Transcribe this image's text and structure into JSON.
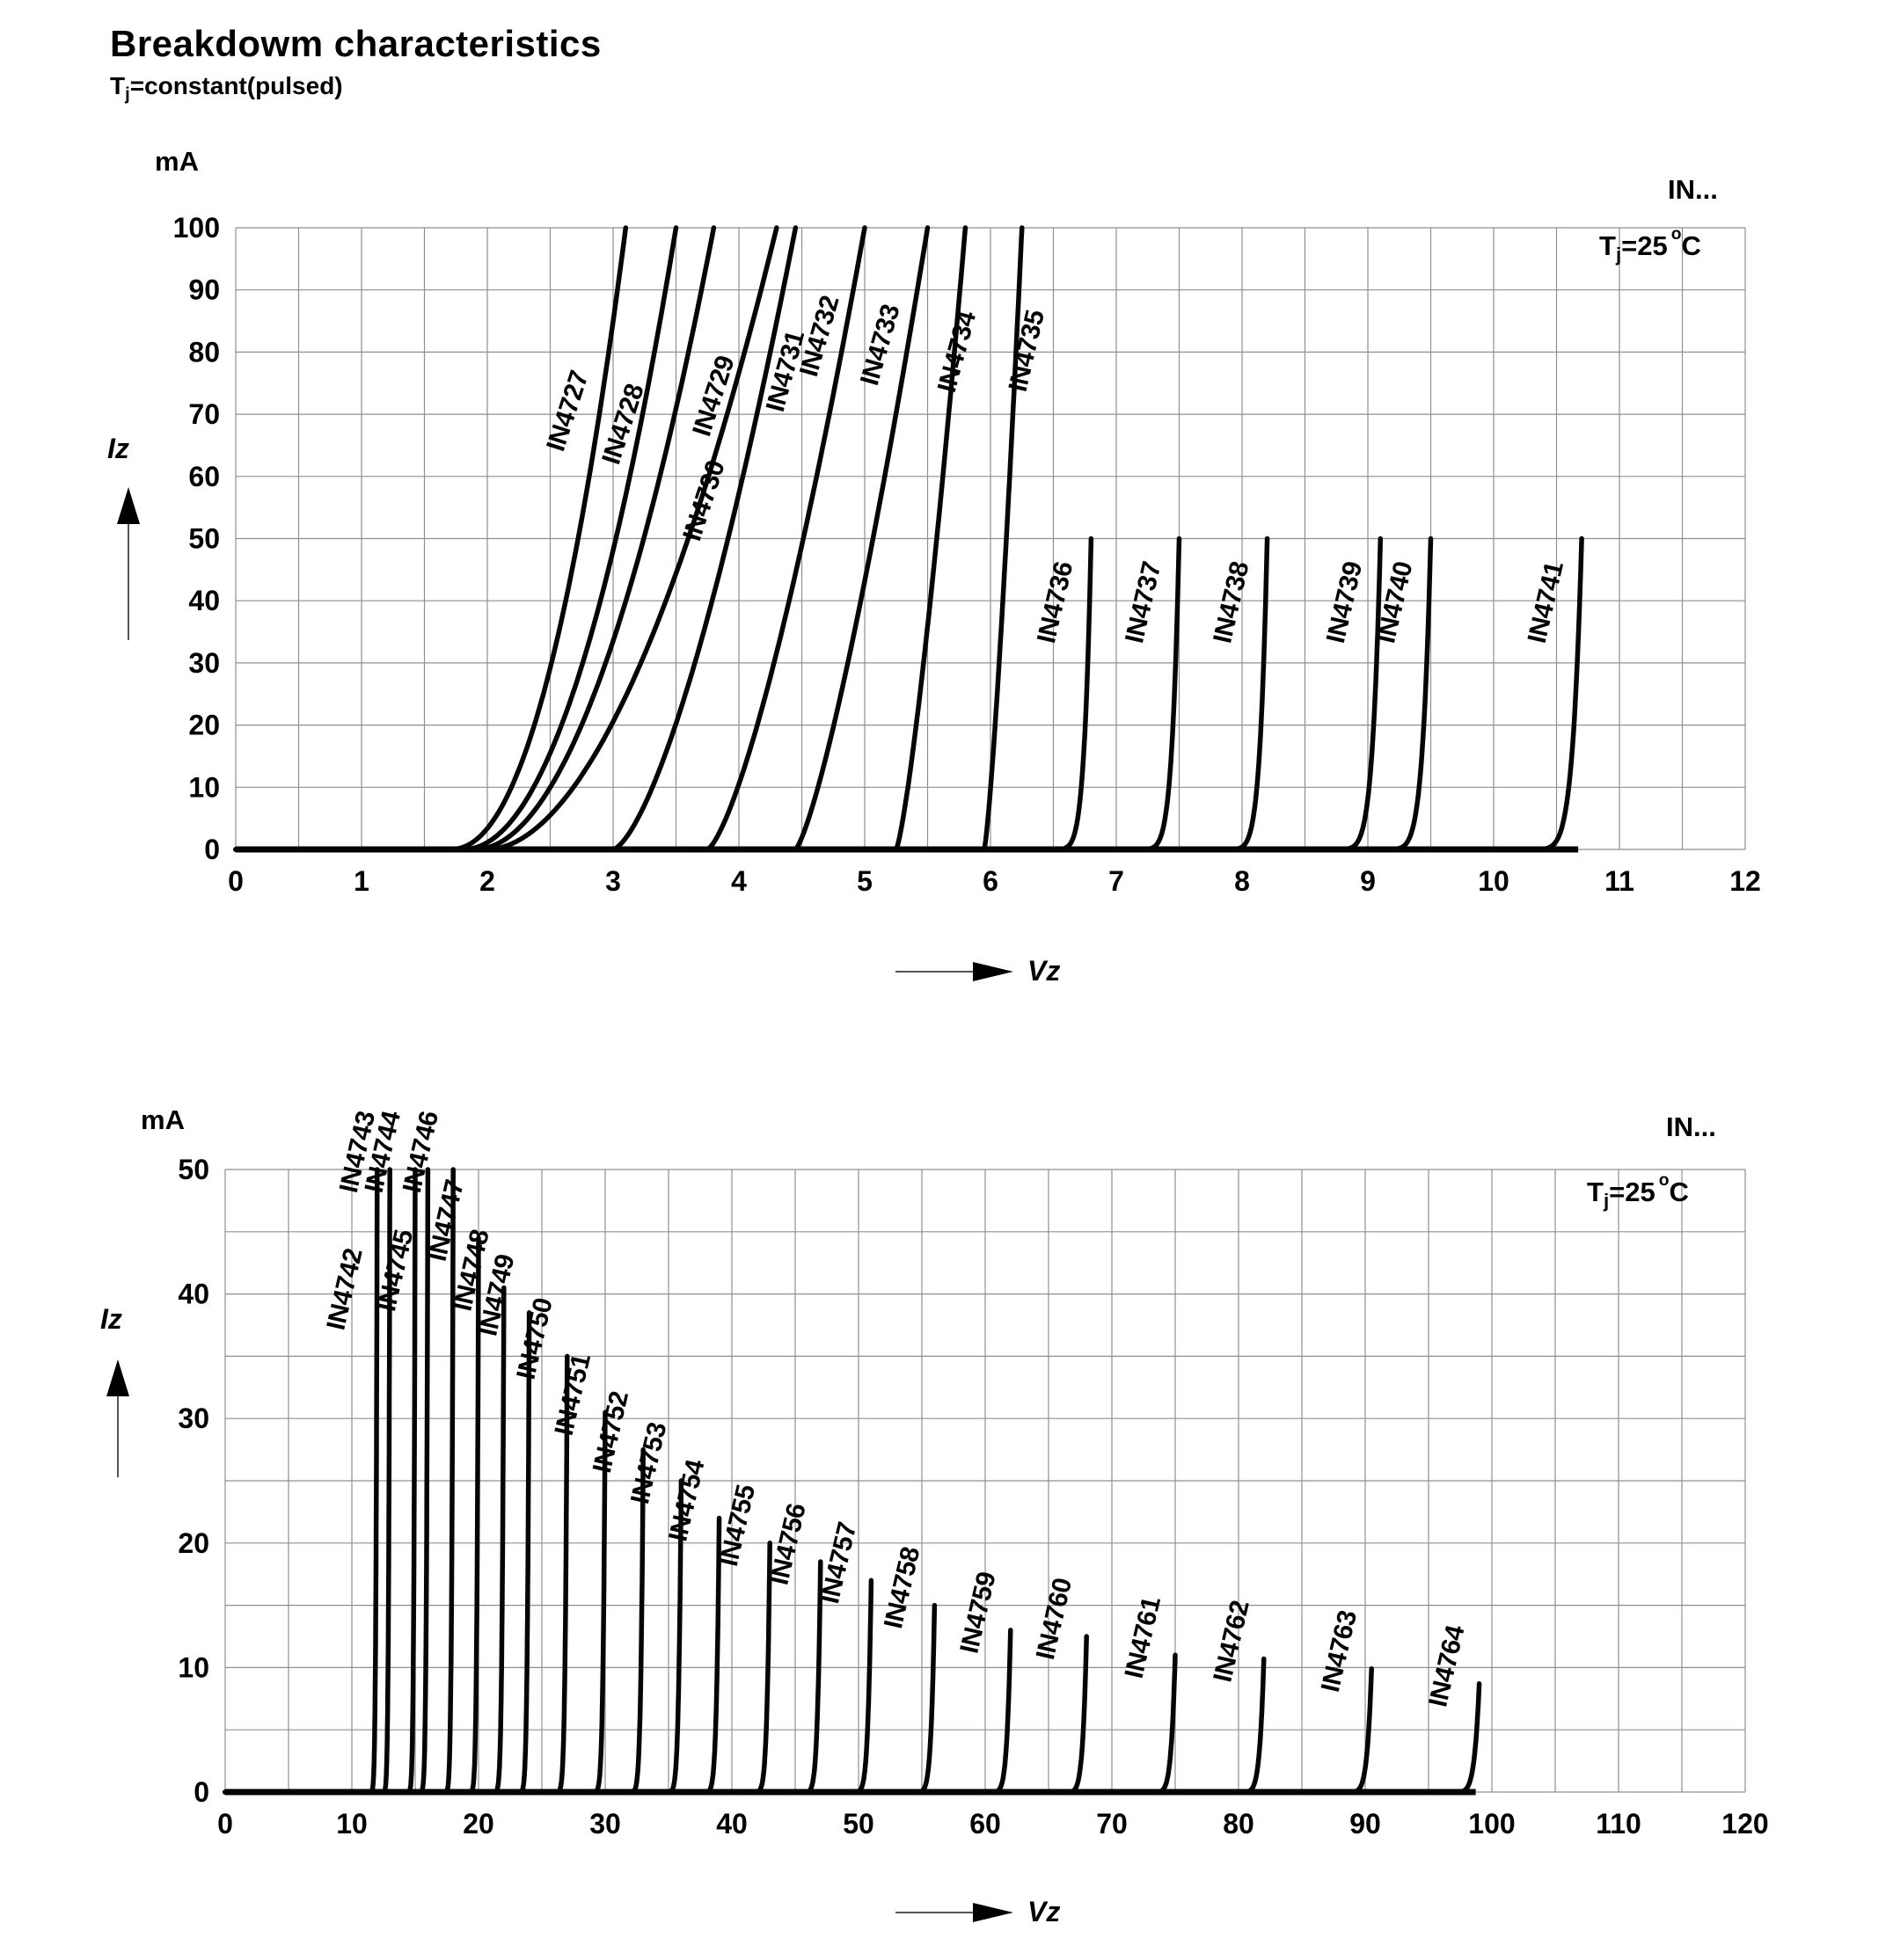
{
  "header": {
    "title": "Breakdowm characteristics",
    "condition": {
      "pre": "T",
      "sub": "j",
      "post": "=constant(pulsed)"
    }
  },
  "chart_data": [
    {
      "type": "line",
      "id": "top-chart",
      "y_unit_label": "mA",
      "ylabel": "Iz",
      "xlabel": "Vz",
      "corner_label": "IN...",
      "condition": {
        "pre": "T",
        "sub": "j",
        "mid": "=25",
        "sup": "o",
        "post": "C"
      },
      "xlim": [
        0,
        12
      ],
      "ylim": [
        0,
        100
      ],
      "x_ticks": [
        0,
        1,
        2,
        3,
        4,
        5,
        6,
        7,
        8,
        9,
        10,
        11,
        12
      ],
      "y_ticks": [
        0,
        10,
        20,
        30,
        40,
        50,
        60,
        70,
        80,
        90,
        100
      ],
      "x_grid_step": 0.5,
      "y_grid_step": 10,
      "grid": true,
      "legend_position": "labels-on-curves",
      "series_note": "vz = breakdown voltage (V) where drawn curve reaches i_max (mA); v_start = onset voltage of knee; knee_exp = curvature exponent of I(V) power-law as drawn",
      "series": [
        {
          "name": "IN4727",
          "vz": 3.1,
          "v_start": 1.7,
          "i_max": 100,
          "knee_exp": 2.2
        },
        {
          "name": "IN4728",
          "vz": 3.5,
          "v_start": 1.8,
          "i_max": 100,
          "knee_exp": 2.1
        },
        {
          "name": "IN4729",
          "vz": 3.8,
          "v_start": 1.9,
          "i_max": 100,
          "knee_exp": 2.0
        },
        {
          "name": "IN4730",
          "vz": 4.3,
          "v_start": 2.0,
          "i_max": 100,
          "knee_exp": 1.9
        },
        {
          "name": "IN4731",
          "vz": 4.45,
          "v_start": 3.0,
          "i_max": 100,
          "knee_exp": 1.5
        },
        {
          "name": "IN4732",
          "vz": 5.0,
          "v_start": 3.75,
          "i_max": 100,
          "knee_exp": 1.4
        },
        {
          "name": "IN4733",
          "vz": 5.5,
          "v_start": 4.45,
          "i_max": 100,
          "knee_exp": 1.3
        },
        {
          "name": "IN4734",
          "vz": 5.8,
          "v_start": 5.25,
          "i_max": 100,
          "knee_exp": 1.3
        },
        {
          "name": "IN4735",
          "vz": 6.25,
          "v_start": 5.95,
          "i_max": 100,
          "knee_exp": 1.3
        },
        {
          "name": "IN4736",
          "vz": 6.8,
          "v_start": 6.42,
          "i_max": 50,
          "knee_exp": 7
        },
        {
          "name": "IN4737",
          "vz": 7.5,
          "v_start": 7.1,
          "i_max": 50,
          "knee_exp": 7
        },
        {
          "name": "IN4738",
          "vz": 8.2,
          "v_start": 7.8,
          "i_max": 50,
          "knee_exp": 7
        },
        {
          "name": "IN4739",
          "vz": 9.1,
          "v_start": 8.66,
          "i_max": 50,
          "knee_exp": 7
        },
        {
          "name": "IN4740",
          "vz": 9.5,
          "v_start": 9.05,
          "i_max": 50,
          "knee_exp": 7
        },
        {
          "name": "IN4741",
          "vz": 10.7,
          "v_start": 10.2,
          "i_max": 50,
          "knee_exp": 7
        }
      ]
    },
    {
      "type": "line",
      "id": "bottom-chart",
      "y_unit_label": "mA",
      "ylabel": "Iz",
      "xlabel": "Vz",
      "corner_label": "IN...",
      "condition": {
        "pre": "T",
        "sub": "j",
        "mid": "=25",
        "sup": "o",
        "post": "C"
      },
      "xlim": [
        0,
        120
      ],
      "ylim": [
        0,
        50
      ],
      "x_ticks": [
        0,
        10,
        20,
        30,
        40,
        50,
        60,
        70,
        80,
        90,
        100,
        110,
        120
      ],
      "y_ticks": [
        0,
        10,
        20,
        30,
        40,
        50
      ],
      "x_grid_step": 5,
      "y_grid_step": 5,
      "grid": true,
      "legend_position": "labels-on-curves",
      "series_note": "vz = breakdown voltage (V) where drawn curve reaches i_max (mA); v_start = onset voltage of knee; knee_exp = curvature exponent of I(V) power-law as drawn",
      "series": [
        {
          "name": "IN4742",
          "vz": 12,
          "v_start": 11.3,
          "i_max": 50,
          "knee_exp": 7
        },
        {
          "name": "IN4743",
          "vz": 13,
          "v_start": 12.3,
          "i_max": 50,
          "knee_exp": 7
        },
        {
          "name": "IN4744",
          "vz": 15,
          "v_start": 14.25,
          "i_max": 50,
          "knee_exp": 7
        },
        {
          "name": "IN4745",
          "vz": 16,
          "v_start": 15.2,
          "i_max": 50,
          "knee_exp": 7
        },
        {
          "name": "IN4746",
          "vz": 18,
          "v_start": 17.15,
          "i_max": 50,
          "knee_exp": 7
        },
        {
          "name": "IN4747",
          "vz": 20,
          "v_start": 19.1,
          "i_max": 44.5,
          "knee_exp": 7
        },
        {
          "name": "IN4748",
          "vz": 22,
          "v_start": 21.0,
          "i_max": 40.5,
          "knee_exp": 7
        },
        {
          "name": "IN4749",
          "vz": 24,
          "v_start": 23.0,
          "i_max": 38.5,
          "knee_exp": 7
        },
        {
          "name": "IN4750",
          "vz": 27,
          "v_start": 25.9,
          "i_max": 35,
          "knee_exp": 7
        },
        {
          "name": "IN4751",
          "vz": 30,
          "v_start": 28.8,
          "i_max": 30.5,
          "knee_exp": 7
        },
        {
          "name": "IN4752",
          "vz": 33,
          "v_start": 31.7,
          "i_max": 27.5,
          "knee_exp": 7
        },
        {
          "name": "IN4753",
          "vz": 36,
          "v_start": 34.6,
          "i_max": 25,
          "knee_exp": 7
        },
        {
          "name": "IN4754",
          "vz": 39,
          "v_start": 37.5,
          "i_max": 22,
          "knee_exp": 7
        },
        {
          "name": "IN4755",
          "vz": 43,
          "v_start": 41.4,
          "i_max": 20,
          "knee_exp": 7
        },
        {
          "name": "IN4756",
          "vz": 47,
          "v_start": 45.3,
          "i_max": 18.5,
          "knee_exp": 7
        },
        {
          "name": "IN4757",
          "vz": 51,
          "v_start": 49.2,
          "i_max": 17,
          "knee_exp": 7
        },
        {
          "name": "IN4758",
          "vz": 56,
          "v_start": 54.1,
          "i_max": 15,
          "knee_exp": 7
        },
        {
          "name": "IN4759",
          "vz": 62,
          "v_start": 60.0,
          "i_max": 13,
          "knee_exp": 7
        },
        {
          "name": "IN4760",
          "vz": 68,
          "v_start": 65.9,
          "i_max": 12.5,
          "knee_exp": 7
        },
        {
          "name": "IN4761",
          "vz": 75,
          "v_start": 72.8,
          "i_max": 11,
          "knee_exp": 7
        },
        {
          "name": "IN4762",
          "vz": 82,
          "v_start": 79.7,
          "i_max": 10.7,
          "knee_exp": 7
        },
        {
          "name": "IN4763",
          "vz": 90.5,
          "v_start": 88.1,
          "i_max": 9.9,
          "knee_exp": 7
        },
        {
          "name": "IN4764",
          "vz": 99,
          "v_start": 96.4,
          "i_max": 8.7,
          "knee_exp": 7
        }
      ]
    }
  ]
}
